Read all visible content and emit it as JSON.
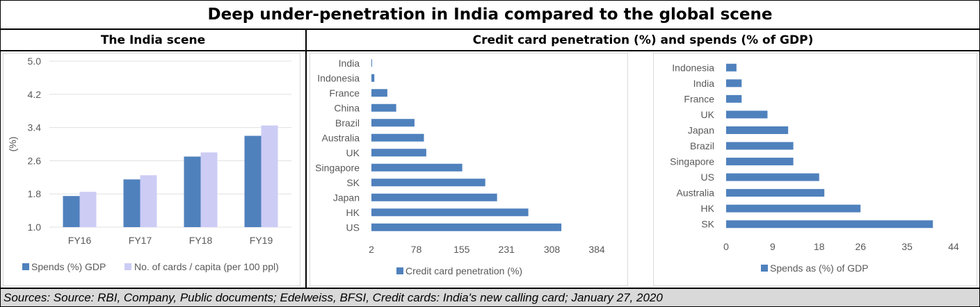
{
  "title": "Deep under-penetration in India compared to the global scene",
  "left_header": "The India scene",
  "right_header": "Credit card penetration (%) and spends (% of GDP)",
  "footer": "Sources: Source: RBI, Company, Public documents; Edelweiss, BFSI, Credit cards: India's new calling card; January 27, 2020",
  "colors": {
    "series1": "#4f81bd",
    "series2": "#ccccf5",
    "grid": "#e0e0e0"
  },
  "chart_data": [
    {
      "type": "bar",
      "ylabel": "(%)",
      "ylim": [
        1.0,
        5.0
      ],
      "yticks": [
        "5.0",
        "4.2",
        "3.4",
        "2.6",
        "1.8",
        "1.0"
      ],
      "categories": [
        "FY16",
        "FY17",
        "FY18",
        "FY19"
      ],
      "series": [
        {
          "name": "Spends (%) GDP",
          "values": [
            1.75,
            2.15,
            2.7,
            3.2
          ]
        },
        {
          "name": "No. of cards / capita (per 100 ppl)",
          "values": [
            1.85,
            2.25,
            2.8,
            3.45
          ]
        }
      ],
      "legend": "bottom"
    },
    {
      "type": "bar",
      "orientation": "horizontal",
      "categories": [
        "India",
        "Indonesia",
        "France",
        "China",
        "Brazil",
        "Australia",
        "UK",
        "Singapore",
        "SK",
        "Japan",
        "HK",
        "US"
      ],
      "series": [
        {
          "name": "Credit card penetration (%)",
          "values": [
            3,
            7,
            29,
            44,
            75,
            91,
            95,
            156,
            195,
            215,
            268,
            324
          ]
        }
      ],
      "xlim": [
        2,
        384
      ],
      "xticks": [
        "2",
        "78",
        "155",
        "231",
        "308",
        "384"
      ],
      "legend": "bottom"
    },
    {
      "type": "bar",
      "orientation": "horizontal",
      "categories": [
        "Indonesia",
        "India",
        "France",
        "UK",
        "Japan",
        "Brazil",
        "Singapore",
        "US",
        "Australia",
        "HK",
        "SK"
      ],
      "series": [
        {
          "name": "Spends as (%) of GDP",
          "values": [
            2,
            3,
            3,
            8,
            12,
            13,
            13,
            18,
            19,
            26,
            40
          ]
        }
      ],
      "xlim": [
        0,
        44
      ],
      "xticks": [
        "0",
        "9",
        "18",
        "26",
        "35",
        "44"
      ],
      "legend": "bottom"
    }
  ]
}
